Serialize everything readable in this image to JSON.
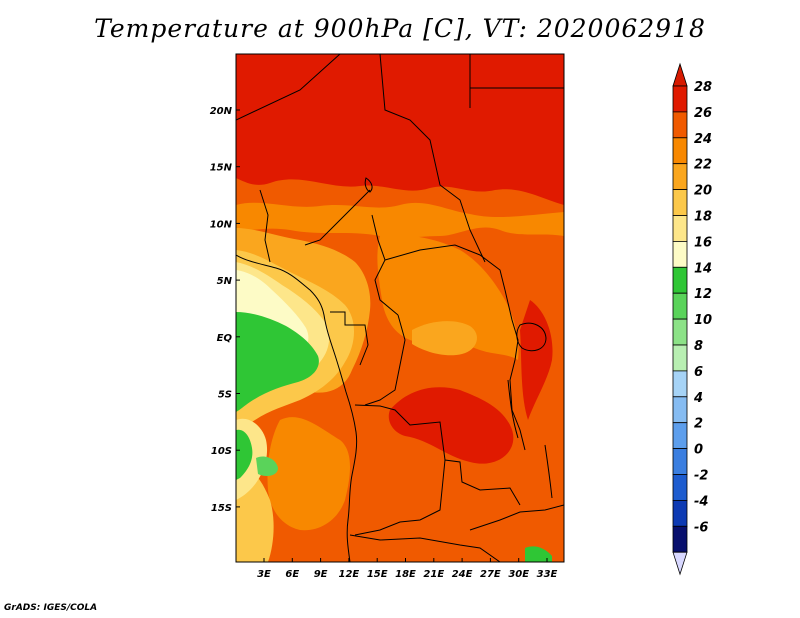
{
  "chart_data": {
    "type": "heatmap",
    "title": "Temperature at 900hPa [C], VT: 2020062918",
    "lat_tick_labels": [
      "20N",
      "15N",
      "10N",
      "5N",
      "EQ",
      "5S",
      "10S",
      "15S"
    ],
    "lon_tick_labels": [
      "3E",
      "6E",
      "9E",
      "12E",
      "15E",
      "18E",
      "21E",
      "24E",
      "27E",
      "30E",
      "33E"
    ],
    "colorbar": {
      "levels": [
        28,
        26,
        24,
        22,
        20,
        18,
        16,
        14,
        12,
        10,
        8,
        6,
        4,
        2,
        0,
        -2,
        -4,
        -6
      ],
      "labels": [
        "28",
        "26",
        "24",
        "22",
        "20",
        "18",
        "16",
        "14",
        "12",
        "10",
        "8",
        "6",
        "4",
        "2",
        "0",
        "-2",
        "-4",
        "-6"
      ],
      "colors": [
        "#e01a00",
        "#f05a00",
        "#f88800",
        "#faa61e",
        "#fcc84a",
        "#fde68a",
        "#fdfbc6",
        "#2fc635",
        "#5ad35a",
        "#8ce287",
        "#b8efb2",
        "#a6d3f6",
        "#86bcf2",
        "#5d9eec",
        "#3a7ee0",
        "#1d5ccf",
        "#0d3ab3",
        "#08106e"
      ],
      "above_max_color": "#d71a00",
      "below_min_color": "#d8d8ff"
    }
  },
  "footer": {
    "credit": "GrADS: IGES/COLA"
  }
}
